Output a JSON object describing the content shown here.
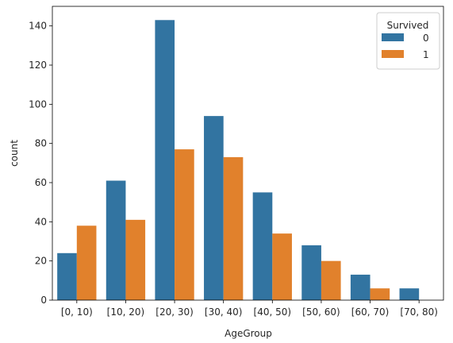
{
  "chart_data": {
    "type": "bar",
    "title": "",
    "xlabel": "AgeGroup",
    "ylabel": "count",
    "categories": [
      "[0, 10)",
      "[10, 20)",
      "[20, 30)",
      "[30, 40)",
      "[40, 50)",
      "[50, 60)",
      "[60, 70)",
      "[70, 80)"
    ],
    "ylim": [
      0,
      150
    ],
    "yticks": [
      0,
      20,
      40,
      60,
      80,
      100,
      120,
      140
    ],
    "grid": false,
    "legend": {
      "title": "Survived",
      "placement": "top-right"
    },
    "series": [
      {
        "name": "0",
        "color": "#3274a1",
        "values": [
          24,
          61,
          143,
          94,
          55,
          28,
          13,
          6
        ]
      },
      {
        "name": "1",
        "color": "#e1812c",
        "values": [
          38,
          41,
          77,
          73,
          34,
          20,
          6,
          0
        ]
      }
    ]
  }
}
